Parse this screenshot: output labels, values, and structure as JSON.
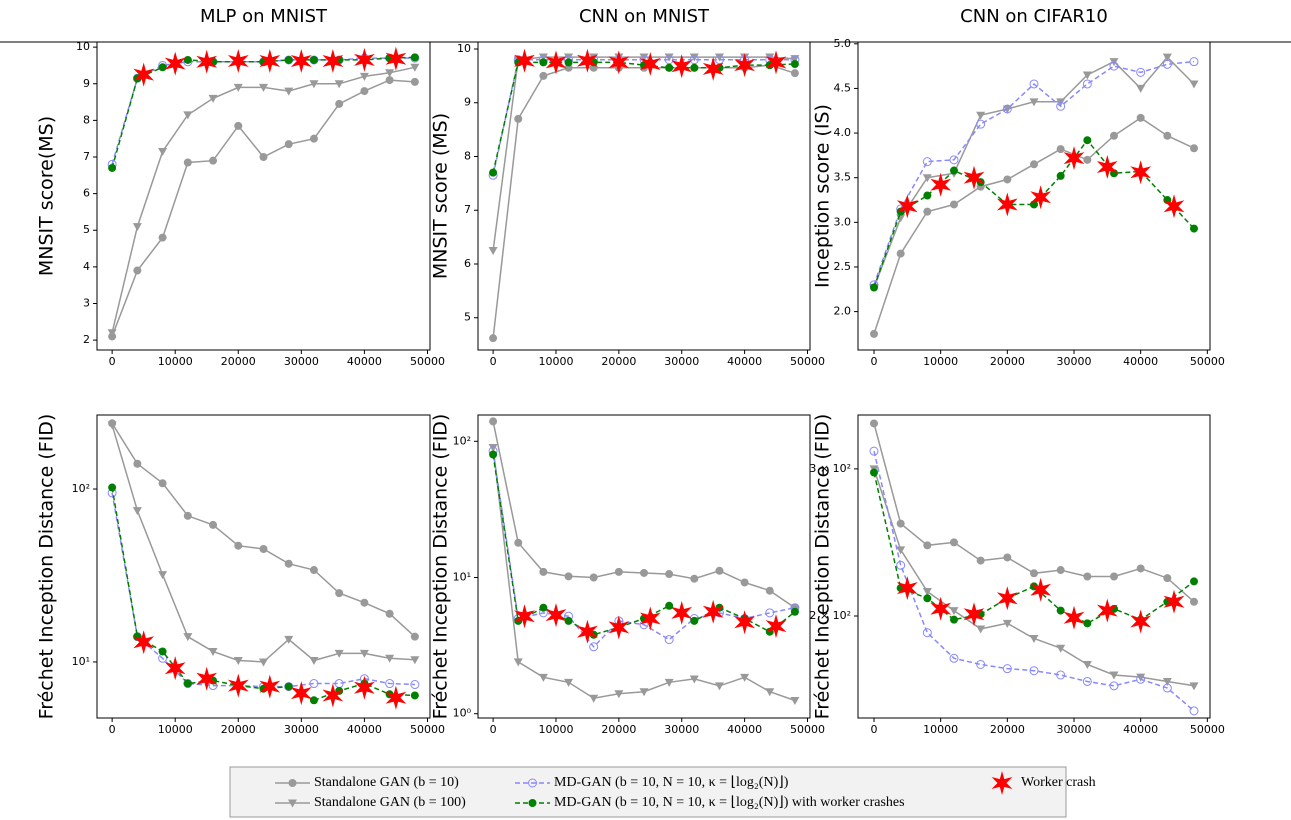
{
  "chart_data": [
    {
      "type": "line",
      "title": "MLP on MNIST",
      "ylabel": "MNSIT score(MS)",
      "log": false,
      "x": [
        0,
        4000,
        8000,
        12000,
        16000,
        20000,
        24000,
        28000,
        32000,
        36000,
        40000,
        44000,
        48000
      ],
      "xlim": [
        -2400,
        50400
      ],
      "xticks": [
        0,
        10000,
        20000,
        30000,
        40000,
        50000
      ],
      "ylim": [
        1.73,
        10.14
      ],
      "yticks": [
        2,
        3,
        4,
        5,
        6,
        7,
        8,
        9,
        10
      ],
      "series": [
        {
          "name": "Standalone GAN (b = 10)",
          "color": "#999999",
          "marker": "circle",
          "dash": false,
          "values": [
            2.1,
            3.9,
            4.8,
            6.85,
            6.9,
            7.85,
            7.0,
            7.35,
            7.5,
            8.45,
            8.8,
            9.1,
            9.05
          ]
        },
        {
          "name": "Standalone GAN (b = 100)",
          "color": "#999999",
          "marker": "triangle",
          "dash": false,
          "values": [
            2.2,
            5.1,
            7.15,
            8.15,
            8.6,
            8.9,
            8.9,
            8.8,
            9.0,
            9.0,
            9.2,
            9.3,
            9.45
          ]
        },
        {
          "name": "MD-GAN (b = 10, N = 10, κ = ⌊log₂(N)⌋)",
          "color": "#8888ff",
          "marker": "open-circle",
          "dash": true,
          "values": [
            6.8,
            9.15,
            9.5,
            9.6,
            9.6,
            9.6,
            9.6,
            9.65,
            9.65,
            9.65,
            9.7,
            9.7,
            9.7
          ]
        },
        {
          "name": "MD-GAN (b = 10, N = 10, κ = ⌊log₂(N)⌋) with worker crashes",
          "color": "#008000",
          "marker": "circle",
          "dash": true,
          "values": [
            6.7,
            9.15,
            9.45,
            9.65,
            9.6,
            9.6,
            9.6,
            9.65,
            9.65,
            9.65,
            9.65,
            9.7,
            9.72
          ]
        },
        {
          "name": "Worker crash",
          "color": "#ff0000",
          "marker": "star",
          "x": [
            5000,
            10000,
            15000,
            20000,
            25000,
            30000,
            35000,
            40000,
            45000
          ],
          "values": [
            9.25,
            9.55,
            9.6,
            9.62,
            9.62,
            9.62,
            9.62,
            9.65,
            9.68
          ]
        }
      ]
    },
    {
      "type": "line",
      "title": "CNN on MNIST",
      "ylabel": "MNSIT score (MS)",
      "log": false,
      "x": [
        0,
        4000,
        8000,
        12000,
        16000,
        20000,
        24000,
        28000,
        32000,
        36000,
        40000,
        44000,
        48000
      ],
      "xlim": [
        -2400,
        50400
      ],
      "xticks": [
        0,
        10000,
        20000,
        30000,
        40000,
        50000
      ],
      "ylim": [
        4.4,
        10.13
      ],
      "yticks": [
        5,
        6,
        7,
        8,
        9,
        10
      ],
      "series": [
        {
          "color": "#999999",
          "marker": "circle",
          "dash": false,
          "values": [
            4.62,
            8.7,
            9.5,
            9.65,
            9.65,
            9.65,
            9.65,
            9.65,
            9.65,
            9.65,
            9.65,
            9.7,
            9.55
          ]
        },
        {
          "color": "#999999",
          "marker": "triangle",
          "dash": false,
          "values": [
            6.25,
            9.8,
            9.85,
            9.85,
            9.85,
            9.85,
            9.85,
            9.85,
            9.85,
            9.85,
            9.85,
            9.85,
            9.82
          ]
        },
        {
          "color": "#8888ff",
          "marker": "open-circle",
          "dash": true,
          "values": [
            7.65,
            9.8,
            9.8,
            9.8,
            9.8,
            9.8,
            9.8,
            9.8,
            9.8,
            9.8,
            9.8,
            9.8,
            9.8
          ]
        },
        {
          "color": "#008000",
          "marker": "circle",
          "dash": true,
          "values": [
            7.7,
            9.75,
            9.75,
            9.75,
            9.75,
            9.75,
            9.7,
            9.65,
            9.65,
            9.65,
            9.7,
            9.7,
            9.72
          ]
        },
        {
          "color": "#ff0000",
          "marker": "star",
          "x": [
            5000,
            10000,
            15000,
            20000,
            25000,
            30000,
            35000,
            40000,
            45000
          ],
          "values": [
            9.78,
            9.75,
            9.78,
            9.75,
            9.72,
            9.68,
            9.63,
            9.7,
            9.75
          ]
        }
      ]
    },
    {
      "type": "line",
      "title": "CNN on CIFAR10",
      "ylabel": "Inception score (IS)",
      "log": false,
      "x": [
        0,
        4000,
        8000,
        12000,
        16000,
        20000,
        24000,
        28000,
        32000,
        36000,
        40000,
        44000,
        48000
      ],
      "xlim": [
        -2400,
        50400
      ],
      "xticks": [
        0,
        10000,
        20000,
        30000,
        40000,
        50000
      ],
      "ylim": [
        1.57,
        5.02
      ],
      "yticks": [
        {
          "value": 2,
          "label": "2.0"
        },
        2.5,
        {
          "value": 3,
          "label": "3.0"
        },
        3.5,
        {
          "value": 4,
          "label": "4.0"
        },
        4.5,
        {
          "value": 5,
          "label": "5.0"
        }
      ],
      "series": [
        {
          "color": "#999999",
          "marker": "circle",
          "dash": false,
          "values": [
            1.75,
            2.65,
            3.12,
            3.2,
            3.4,
            3.48,
            3.65,
            3.82,
            3.7,
            3.97,
            4.17,
            3.97,
            3.83
          ]
        },
        {
          "color": "#999999",
          "marker": "triangle",
          "dash": false,
          "values": [
            2.27,
            3.05,
            3.5,
            3.55,
            4.2,
            4.27,
            4.35,
            4.35,
            4.65,
            4.8,
            4.5,
            4.85,
            4.55
          ]
        },
        {
          "color": "#8888ff",
          "marker": "open-circle",
          "dash": true,
          "values": [
            2.3,
            3.15,
            3.68,
            3.7,
            4.1,
            4.27,
            4.55,
            4.3,
            4.55,
            4.75,
            4.68,
            4.77,
            4.8
          ]
        },
        {
          "color": "#008000",
          "marker": "circle",
          "dash": true,
          "values": [
            2.27,
            3.12,
            3.3,
            3.58,
            3.45,
            3.2,
            3.2,
            3.52,
            3.92,
            3.55,
            3.57,
            3.25,
            2.93
          ]
        },
        {
          "color": "#ff0000",
          "marker": "star",
          "x": [
            5000,
            10000,
            15000,
            20000,
            25000,
            30000,
            35000,
            40000,
            45000
          ],
          "values": [
            3.18,
            3.42,
            3.5,
            3.2,
            3.28,
            3.72,
            3.62,
            3.56,
            3.18
          ]
        }
      ]
    },
    {
      "type": "line",
      "ylabel": "Fréchet Inception Distance (FID)",
      "log": true,
      "x": [
        0,
        4000,
        8000,
        12000,
        16000,
        20000,
        24000,
        28000,
        32000,
        36000,
        40000,
        44000,
        48000
      ],
      "xlim": [
        -2400,
        50400
      ],
      "xticks": [
        0,
        10000,
        20000,
        30000,
        40000,
        50000
      ],
      "ylim": [
        4.74,
        268
      ],
      "yticks": [
        {
          "value": 10,
          "label": "10¹"
        },
        {
          "value": 100,
          "label": "10²"
        }
      ],
      "series": [
        {
          "color": "#999999",
          "marker": "circle",
          "dash": false,
          "values": [
            240,
            140,
            108,
            70,
            62,
            47,
            45,
            37,
            34,
            25,
            22,
            19,
            14
          ]
        },
        {
          "color": "#999999",
          "marker": "triangle",
          "dash": false,
          "values": [
            235,
            75,
            32,
            14,
            11.5,
            10.2,
            10,
            13.5,
            10.2,
            11.2,
            11.2,
            10.5,
            10.3
          ]
        },
        {
          "color": "#8888ff",
          "marker": "open-circle",
          "dash": true,
          "values": [
            95,
            14,
            10.5,
            7.5,
            7.3,
            7.3,
            7.2,
            7.2,
            7.5,
            7.5,
            8,
            7.5,
            7.4
          ]
        },
        {
          "color": "#008000",
          "marker": "circle",
          "dash": true,
          "values": [
            102,
            14,
            11.5,
            7.5,
            7.8,
            7.3,
            7,
            7.2,
            6,
            6.8,
            7.5,
            6.5,
            6.4
          ]
        },
        {
          "color": "#ff0000",
          "marker": "star",
          "x": [
            5000,
            10000,
            15000,
            20000,
            25000,
            30000,
            35000,
            40000,
            45000
          ],
          "values": [
            13,
            9.2,
            8,
            7.3,
            7.2,
            6.6,
            6.4,
            7.1,
            6.2
          ]
        }
      ]
    },
    {
      "type": "line",
      "ylabel": "Fréchet Inception Distance (FID)",
      "log": true,
      "x": [
        0,
        4000,
        8000,
        12000,
        16000,
        20000,
        24000,
        28000,
        32000,
        36000,
        40000,
        44000,
        48000
      ],
      "xlim": [
        -2400,
        50400
      ],
      "xticks": [
        0,
        10000,
        20000,
        30000,
        40000,
        50000
      ],
      "ylim": [
        0.93,
        156
      ],
      "yticks": [
        {
          "value": 1,
          "label": "10⁰"
        },
        {
          "value": 10,
          "label": "10¹"
        },
        {
          "value": 100,
          "label": "10²"
        }
      ],
      "series": [
        {
          "color": "#999999",
          "marker": "circle",
          "dash": false,
          "values": [
            140,
            18,
            11,
            10.2,
            10,
            11,
            10.8,
            10.6,
            9.8,
            11.2,
            9.2,
            8,
            6
          ]
        },
        {
          "color": "#999999",
          "marker": "triangle",
          "dash": false,
          "values": [
            90,
            2.4,
            1.85,
            1.7,
            1.3,
            1.4,
            1.45,
            1.7,
            1.8,
            1.6,
            1.85,
            1.45,
            1.25
          ]
        },
        {
          "color": "#8888ff",
          "marker": "open-circle",
          "dash": true,
          "values": [
            85,
            5,
            5.5,
            5.2,
            3.1,
            4.8,
            4.5,
            3.5,
            5,
            5.5,
            5,
            5.5,
            6
          ]
        },
        {
          "color": "#008000",
          "marker": "circle",
          "dash": true,
          "values": [
            80,
            4.8,
            6,
            4.8,
            3.8,
            4.3,
            5,
            6.2,
            4.8,
            6,
            5,
            4,
            5.6
          ]
        },
        {
          "color": "#ff0000",
          "marker": "star",
          "x": [
            5000,
            10000,
            15000,
            20000,
            25000,
            30000,
            35000,
            40000,
            45000
          ],
          "values": [
            5.2,
            5.3,
            4,
            4.3,
            5,
            5.5,
            5.6,
            4.7,
            4.4
          ]
        }
      ]
    },
    {
      "type": "line",
      "ylabel": "Fréchet Inception Distance (FID)",
      "log": true,
      "x": [
        0,
        4000,
        8000,
        12000,
        16000,
        20000,
        24000,
        28000,
        32000,
        36000,
        40000,
        44000,
        48000
      ],
      "xlim": [
        -2400,
        50400
      ],
      "xticks": [
        0,
        10000,
        20000,
        30000,
        40000,
        50000
      ],
      "ylim": [
        151,
        348
      ],
      "yticks": [
        {
          "value": 200,
          "label": "2 × 10²"
        },
        {
          "value": 300,
          "label": "3 × 10²"
        }
      ],
      "series": [
        {
          "color": "#999999",
          "marker": "circle",
          "dash": false,
          "values": [
            340,
            258,
            243,
            245,
            233,
            235,
            225,
            227,
            223,
            223,
            228,
            222,
            208
          ]
        },
        {
          "color": "#999999",
          "marker": "triangle",
          "dash": false,
          "values": [
            300,
            240,
            214,
            203,
            193,
            196,
            188,
            183,
            175,
            170,
            169,
            167,
            165
          ]
        },
        {
          "color": "#8888ff",
          "marker": "open-circle",
          "dash": true,
          "values": [
            315,
            230,
            191,
            178,
            175,
            173,
            172,
            170,
            167,
            165,
            168,
            164,
            154
          ]
        },
        {
          "color": "#008000",
          "marker": "circle",
          "dash": true,
          "values": [
            297,
            216,
            210,
            198,
            201,
            210,
            217,
            203,
            196,
            204,
            198,
            208,
            220
          ]
        },
        {
          "color": "#ff0000",
          "marker": "star",
          "x": [
            5000,
            10000,
            15000,
            20000,
            25000,
            30000,
            35000,
            40000,
            45000
          ],
          "values": [
            216,
            204,
            201,
            210,
            215,
            199,
            203,
            197,
            208
          ]
        }
      ]
    }
  ]
}
